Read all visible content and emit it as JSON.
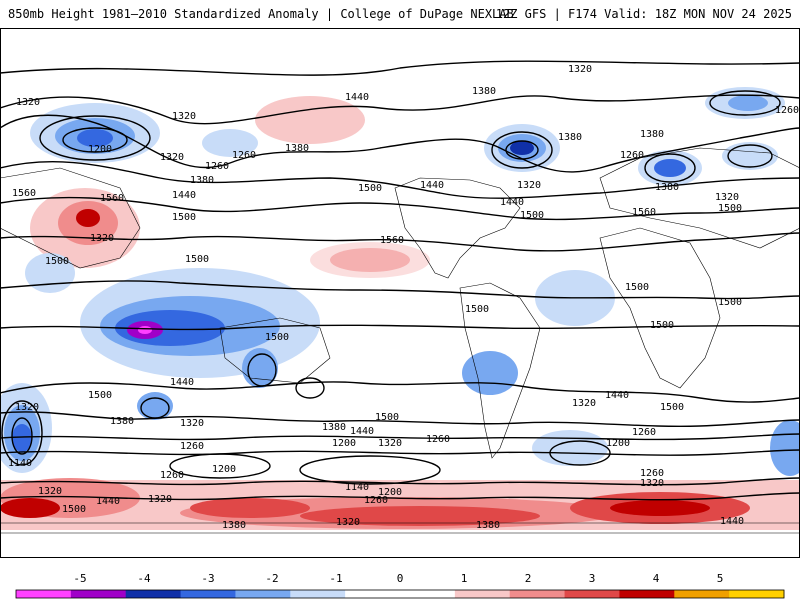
{
  "header": {
    "title_left": "850mb Height 1981–2010 Standardized Anomaly | College of DuPage NEXLAB",
    "title_right": "12Z GFS | F174 Valid: 18Z MON NOV 24 2025"
  },
  "colors": {
    "anomaly_scale": [
      "#ff40ff",
      "#a000c8",
      "#1030a8",
      "#3468e0",
      "#78a8f0",
      "#c8dcf8",
      "#ffffff",
      "#ffffff",
      "#f8c8c8",
      "#f08c8c",
      "#e04848",
      "#c00000",
      "#f0a000",
      "#ffd000"
    ],
    "contour": "#000000",
    "land_outline": "#000000"
  },
  "colorbar": {
    "labels": [
      "-5",
      "-4",
      "-3",
      "-2",
      "-1",
      "0",
      "1",
      "2",
      "3",
      "4",
      "5"
    ]
  },
  "contour_labels": [
    {
      "id": "c1",
      "text": "1320"
    },
    {
      "id": "c2",
      "text": "1320"
    },
    {
      "id": "c3",
      "text": "1440"
    },
    {
      "id": "c4",
      "text": "1380"
    },
    {
      "id": "c5",
      "text": "1260"
    },
    {
      "id": "c6",
      "text": "1320"
    },
    {
      "id": "c7",
      "text": "1200"
    },
    {
      "id": "c8",
      "text": "1260"
    },
    {
      "id": "c9",
      "text": "1380"
    },
    {
      "id": "c10",
      "text": "1320"
    },
    {
      "id": "c11",
      "text": "1260"
    },
    {
      "id": "c12",
      "text": "1380"
    },
    {
      "id": "c13",
      "text": "1440"
    },
    {
      "id": "c14",
      "text": "1500"
    },
    {
      "id": "c15",
      "text": "1560"
    },
    {
      "id": "c16",
      "text": "1560"
    },
    {
      "id": "c17",
      "text": "1500"
    },
    {
      "id": "c18",
      "text": "1320"
    },
    {
      "id": "c19",
      "text": "1560"
    },
    {
      "id": "c20",
      "text": "1500"
    },
    {
      "id": "c21",
      "text": "1440"
    },
    {
      "id": "c22",
      "text": "1500"
    },
    {
      "id": "c23",
      "text": "1500"
    },
    {
      "id": "c24",
      "text": "1380"
    },
    {
      "id": "c25",
      "text": "1320"
    },
    {
      "id": "c26",
      "text": "1380"
    },
    {
      "id": "c27",
      "text": "1260"
    },
    {
      "id": "c28",
      "text": "1380"
    },
    {
      "id": "c29",
      "text": "1320"
    },
    {
      "id": "c30",
      "text": "1560"
    },
    {
      "id": "c31",
      "text": "1440"
    },
    {
      "id": "c32",
      "text": "1500"
    },
    {
      "id": "c33",
      "text": "1500"
    },
    {
      "id": "c34",
      "text": "1500"
    },
    {
      "id": "c35",
      "text": "1500"
    },
    {
      "id": "c36",
      "text": "1500"
    },
    {
      "id": "c37",
      "text": "1500"
    },
    {
      "id": "c38",
      "text": "1500"
    },
    {
      "id": "c39",
      "text": "1440"
    },
    {
      "id": "c40",
      "text": "1320"
    },
    {
      "id": "c41",
      "text": "1380"
    },
    {
      "id": "c42",
      "text": "1320"
    },
    {
      "id": "c43",
      "text": "1260"
    },
    {
      "id": "c44",
      "text": "1140"
    },
    {
      "id": "c45",
      "text": "1500"
    },
    {
      "id": "c46",
      "text": "1380"
    },
    {
      "id": "c47",
      "text": "1440"
    },
    {
      "id": "c48",
      "text": "1320"
    },
    {
      "id": "c49",
      "text": "1200"
    },
    {
      "id": "c50",
      "text": "1260"
    },
    {
      "id": "c51",
      "text": "1200"
    },
    {
      "id": "c52",
      "text": "1260"
    },
    {
      "id": "c53",
      "text": "1320"
    },
    {
      "id": "c54",
      "text": "1440"
    },
    {
      "id": "c55",
      "text": "1500"
    },
    {
      "id": "c56",
      "text": "1320"
    },
    {
      "id": "c57",
      "text": "1140"
    },
    {
      "id": "c58",
      "text": "1200"
    },
    {
      "id": "c59",
      "text": "1260"
    },
    {
      "id": "c60",
      "text": "1320"
    },
    {
      "id": "c61",
      "text": "1380"
    },
    {
      "id": "c62",
      "text": "1380"
    },
    {
      "id": "c63",
      "text": "1440"
    },
    {
      "id": "c64",
      "text": "1500"
    },
    {
      "id": "c65",
      "text": "1320"
    },
    {
      "id": "c66",
      "text": "1260"
    },
    {
      "id": "c67",
      "text": "1200"
    },
    {
      "id": "c68",
      "text": "1260"
    },
    {
      "id": "c69",
      "text": "1320"
    },
    {
      "id": "c70",
      "text": "1440"
    }
  ]
}
